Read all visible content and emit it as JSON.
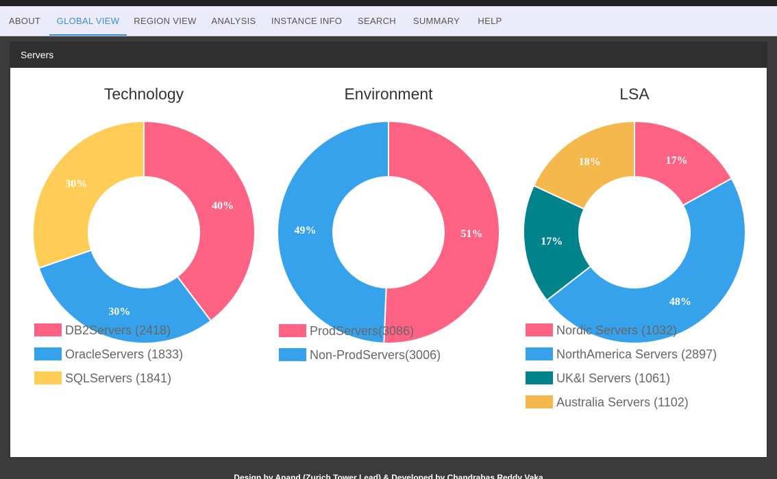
{
  "nav": {
    "tabs": [
      {
        "label": "ABOUT",
        "active": false
      },
      {
        "label": "GLOBAL VIEW",
        "active": true
      },
      {
        "label": "REGION VIEW",
        "active": false
      },
      {
        "label": "ANALYSIS",
        "active": false
      },
      {
        "label": "INSTANCE INFO",
        "active": false
      },
      {
        "label": "SEARCH",
        "active": false
      },
      {
        "label": "SUMMARY",
        "active": false
      },
      {
        "label": "HELP",
        "active": false
      }
    ]
  },
  "panel": {
    "title": "Servers"
  },
  "footer": {
    "text": "Design by Anand (Zurich Tower Lead) & Developed by Chandrahas Reddy Vaka"
  },
  "chart_data": [
    {
      "type": "pie",
      "title": "Technology",
      "categories": [
        "DB2Servers",
        "OracleServers",
        "SQLServers"
      ],
      "values": [
        2418,
        1833,
        1841
      ],
      "percent_labels": [
        "40%",
        "30%",
        "30%"
      ],
      "legend_labels": [
        "DB2Servers (2418)",
        "OracleServers (1833)",
        "SQLServers (1841)"
      ],
      "colors": [
        "#ff6384",
        "#36a2eb",
        "#ffcd56"
      ],
      "legend": "bottom"
    },
    {
      "type": "pie",
      "title": "Environment",
      "categories": [
        "ProdServers",
        "Non-ProdServers"
      ],
      "values": [
        3086,
        3006
      ],
      "percent_labels": [
        "51%",
        "49%"
      ],
      "legend_labels": [
        "ProdServers(3086)",
        "Non-ProdServers(3006)"
      ],
      "colors": [
        "#ff6384",
        "#36a2eb"
      ],
      "legend": "bottom"
    },
    {
      "type": "pie",
      "title": "LSA",
      "categories": [
        "Nordic Servers",
        "NorthAmerica Servers",
        "UK&I Servers",
        "Australia Servers"
      ],
      "values": [
        1032,
        2897,
        1061,
        1102
      ],
      "percent_labels": [
        "17%",
        "48%",
        "17%",
        "18%"
      ],
      "legend_labels": [
        "Nordic Servers (1032)",
        "NorthAmerica Servers (2897)",
        "UK&I Servers (1061)",
        "Australia Servers (1102)"
      ],
      "colors": [
        "#ff6384",
        "#36a2eb",
        "#00838a",
        "#f5b84c"
      ],
      "legend": "bottom"
    }
  ]
}
